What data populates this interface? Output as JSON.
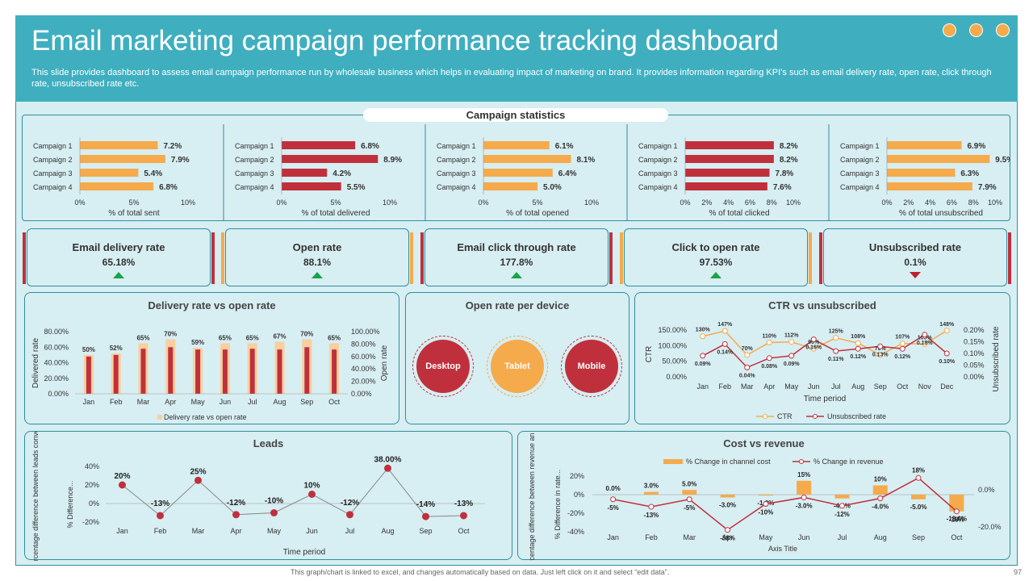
{
  "header": {
    "title": "Email marketing campaign performance tracking dashboard",
    "subtitle": "This slide provides dashboard to assess email campaign performance run by wholesale business which helps in evaluating impact of marketing on brand. It provides information regarding KPI’s such as email delivery rate, open rate, click through rate, unsubscribed rate etc."
  },
  "section_title": "Campaign statistics",
  "colors": {
    "orange": "#f5aa4c",
    "red": "#c0303c",
    "teal": "#3fafc0",
    "green": "#1aa34a",
    "peach": "#f8cf9e"
  },
  "chart_data": [
    {
      "type": "bar",
      "orientation": "horizontal",
      "title": "% of total sent",
      "categories": [
        "Campaign 1",
        "Campaign 2",
        "Campaign 3",
        "Campaign 4"
      ],
      "values": [
        7.2,
        7.9,
        5.4,
        6.8
      ],
      "labels": [
        "7.2%",
        "7.9%",
        "5.4%",
        "6.8%"
      ],
      "xlim": [
        0,
        10
      ],
      "ticks": [
        "0%",
        "5%",
        "10%"
      ],
      "color": "orange"
    },
    {
      "type": "bar",
      "orientation": "horizontal",
      "title": "% of total delivered",
      "categories": [
        "Campaign 1",
        "Campaign 2",
        "Campaign 3",
        "Campaign 4"
      ],
      "values": [
        6.8,
        8.9,
        4.2,
        5.5
      ],
      "labels": [
        "6.8%",
        "8.9%",
        "4.2%",
        "5.5%"
      ],
      "xlim": [
        0,
        10
      ],
      "ticks": [
        "0%",
        "5%",
        "10%"
      ],
      "color": "red"
    },
    {
      "type": "bar",
      "orientation": "horizontal",
      "title": "% of total opened",
      "categories": [
        "Campaign 1",
        "Campaign 2",
        "Campaign 3",
        "Campaign 4"
      ],
      "values": [
        6.1,
        8.1,
        6.4,
        5.0
      ],
      "labels": [
        "6.1%",
        "8.1%",
        "6.4%",
        "5.0%"
      ],
      "xlim": [
        0,
        10
      ],
      "ticks": [
        "0%",
        "5%",
        "10%"
      ],
      "color": "orange"
    },
    {
      "type": "bar",
      "orientation": "horizontal",
      "title": "% of total clicked",
      "categories": [
        "Campaign 1",
        "Campaign 2",
        "Campaign 3",
        "Campaign 4"
      ],
      "values": [
        8.2,
        8.2,
        7.8,
        7.6
      ],
      "labels": [
        "8.2%",
        "8.2%",
        "7.8%",
        "7.6%"
      ],
      "xlim": [
        0,
        10
      ],
      "ticks": [
        "0%",
        "2%",
        "4%",
        "6%",
        "8%",
        "10%"
      ],
      "color": "red"
    },
    {
      "type": "bar",
      "orientation": "horizontal",
      "title": "% of total unsubscribed",
      "categories": [
        "Campaign 1",
        "Campaign 2",
        "Campaign 3",
        "Campaign 4"
      ],
      "values": [
        6.9,
        9.5,
        6.3,
        7.9
      ],
      "labels": [
        "6.9%",
        "9.5%",
        "6.3%",
        "7.9%"
      ],
      "xlim": [
        0,
        10
      ],
      "ticks": [
        "0%",
        "2%",
        "4%",
        "6%",
        "8%",
        "10%"
      ],
      "color": "orange"
    },
    {
      "type": "bar",
      "title": "Delivery rate vs open rate",
      "categories": [
        "Jan",
        "Feb",
        "Mar",
        "Apr",
        "May",
        "Jun",
        "Jul",
        "Aug",
        "Sep",
        "Oct"
      ],
      "series": [
        {
          "name": "Delivery rate vs open rate",
          "values": [
            50,
            52,
            65,
            70,
            59,
            65,
            65,
            67,
            70,
            65
          ],
          "labels": [
            "50%",
            "52%",
            "65%",
            "70%",
            "59%",
            "65%",
            "65%",
            "67%",
            "70%",
            "65%"
          ]
        },
        {
          "name": "Open rate",
          "values": [
            48,
            50,
            58,
            60,
            57,
            57,
            58,
            57,
            60,
            57
          ]
        }
      ],
      "ylabel": "Delivered rate",
      "y2label": "Open rate",
      "ylim": [
        0,
        80
      ],
      "yticks": [
        "0.00%",
        "20.00%",
        "40.00%",
        "60.00%",
        "80.00%"
      ],
      "y2ticks": [
        "0.00%",
        "20.00%",
        "40.00%",
        "60.00%",
        "80.00%",
        "100.00%"
      ],
      "legend": "Delivery rate vs open rate"
    },
    {
      "type": "line",
      "title": "CTR vs unsubscribed",
      "x": [
        "Jan",
        "Feb",
        "Mar",
        "Apr",
        "May",
        "Jun",
        "Jul",
        "Aug",
        "Sep",
        "Oct",
        "Nov",
        "Dec"
      ],
      "series": [
        {
          "name": "CTR",
          "values": [
            130,
            147,
            70,
            110,
            112,
            90,
            125,
            108,
            70,
            107,
            105,
            148
          ],
          "labels": [
            "130%",
            "147%",
            "70%",
            "110%",
            "112%",
            "90%",
            "125%",
            "108%",
            "70%",
            "107%",
            "105%",
            "148%"
          ]
        },
        {
          "name": "Unsubscribed rate",
          "values": [
            0.09,
            0.14,
            0.04,
            0.08,
            0.09,
            0.16,
            0.11,
            0.12,
            0.13,
            0.12,
            0.18,
            0.1
          ],
          "labels": [
            "0.09%",
            "0.14%",
            "0.04%",
            "0.08%",
            "0.09%",
            "0.16%",
            "0.11%",
            "0.12%",
            "0.13%",
            "0.12%",
            "0.18%",
            "0.10%"
          ]
        }
      ],
      "ylabel": "CTR",
      "y2label": "Unsubscribed rate",
      "xlabel": "Time period",
      "yticks": [
        "0.00%",
        "50.00%",
        "100.00%",
        "150.00%"
      ],
      "y2ticks": [
        "0.00%",
        "0.05%",
        "0.10%",
        "0.15%",
        "0.20%"
      ],
      "ylim": [
        0,
        150
      ],
      "y2lim": [
        0,
        0.2
      ]
    },
    {
      "type": "line",
      "title": "Leads",
      "x": [
        "Jan",
        "Feb",
        "Mar",
        "Apr",
        "May",
        "Jun",
        "Jul",
        "Aug",
        "Sep",
        "Oct"
      ],
      "values": [
        20,
        -13,
        25,
        -12,
        -10,
        10,
        -12,
        38,
        -14,
        -13
      ],
      "labels": [
        "20%",
        "-13%",
        "25%",
        "-12%",
        "-10%",
        "10%",
        "-12%",
        "38.00%",
        "-14%",
        "-13%"
      ],
      "ylabel": "Percentage difference between leads converted",
      "ylabel2": "% Difference...",
      "xlabel": "Time period",
      "ylim": [
        -20,
        40
      ],
      "yticks": [
        "-20%",
        "0%",
        "20%",
        "40%"
      ]
    },
    {
      "type": "bar+line",
      "title": "Cost vs revenue",
      "x": [
        "Jan",
        "Feb",
        "Mar",
        "Apr",
        "May",
        "Jun",
        "Jul",
        "Aug",
        "Sep",
        "Oct"
      ],
      "series": [
        {
          "name": "% Change in channel cost",
          "values": [
            0,
            3,
            5,
            -3,
            -1,
            15,
            -4,
            10,
            -5,
            -18
          ],
          "labels": [
            "0.0%",
            "3.0%",
            "5.0%",
            "-3.0%",
            "-1.0%",
            "15%",
            "-4.0%",
            "10%",
            "-5.0%",
            "-18.0%"
          ]
        },
        {
          "name": "% Change in revenue",
          "values": [
            -5,
            -13,
            -5,
            -38,
            -10,
            -3,
            -12,
            -4,
            18,
            -18
          ],
          "labels": [
            "-5%",
            "-13%",
            "-5%",
            "-38%",
            "-10%",
            "-3.0%",
            "-12%",
            "-4.0%",
            "18%",
            "-18%"
          ]
        }
      ],
      "ylabel": "Percentage difference between revenue an cost",
      "ylabel2": "% Difference in rate...",
      "xlabel": "Axis Title",
      "ylim": [
        -40,
        20
      ],
      "yticks": [
        "-40%",
        "-20%",
        "0%",
        "20%"
      ],
      "y2ticks": [
        "-20.0%",
        "0.0%"
      ]
    }
  ],
  "kpis": [
    {
      "label": "Email delivery rate",
      "value": "65.18%",
      "trend": "up"
    },
    {
      "label": "Open rate",
      "value": "88.1%",
      "trend": "up"
    },
    {
      "label": "Email click through rate",
      "value": "177.8%",
      "trend": "up"
    },
    {
      "label": "Click to open rate",
      "value": "97.53%",
      "trend": "up"
    },
    {
      "label": "Unsubscribed rate",
      "value": "0.1%",
      "trend": "down"
    }
  ],
  "devices": {
    "title": "Open rate per device",
    "items": [
      "Desktop",
      "Tablet",
      "Mobile"
    ]
  },
  "panels": {
    "delivery": "Delivery rate vs open rate",
    "ctr": "CTR vs unsubscribed",
    "leads": "Leads",
    "cost": "Cost vs revenue"
  },
  "footer": "This graph/chart is linked to excel, and changes automatically based on data. Just left click on it and select “edit data”.",
  "page_number": "97"
}
